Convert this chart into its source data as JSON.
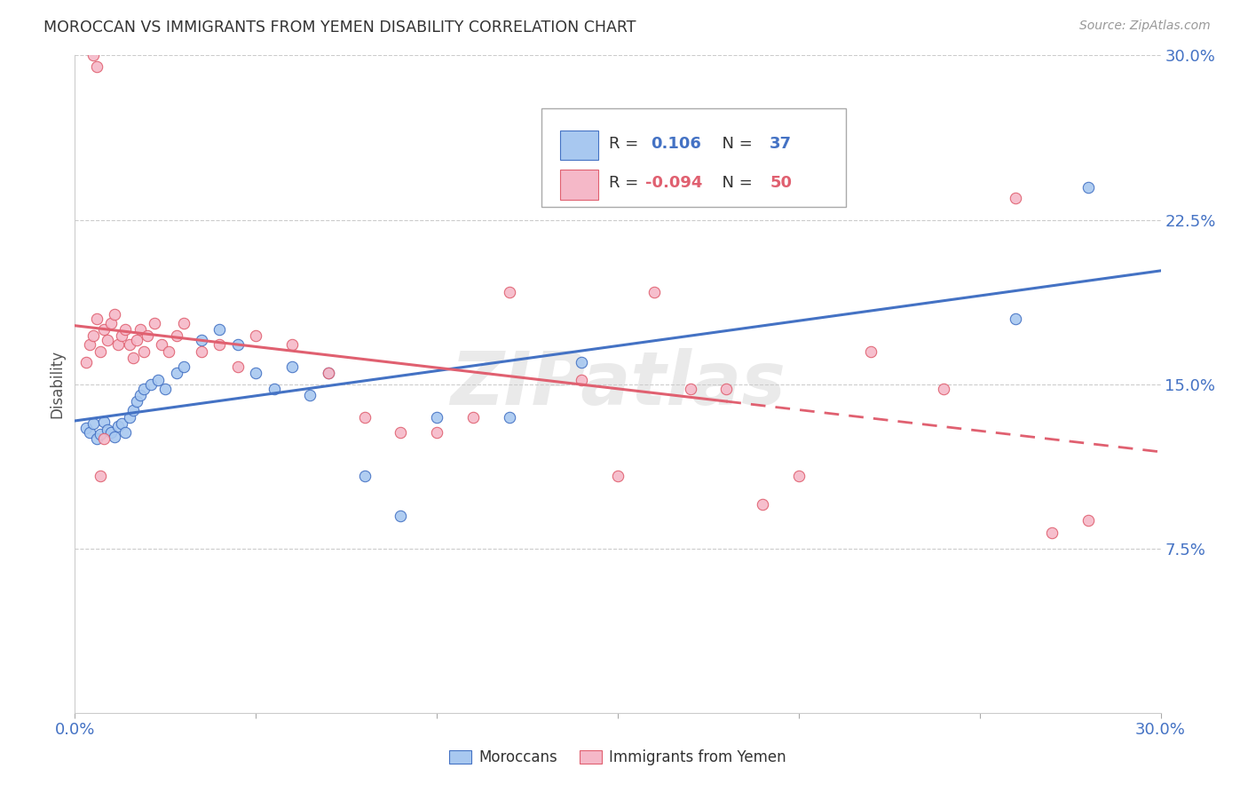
{
  "title": "MOROCCAN VS IMMIGRANTS FROM YEMEN DISABILITY CORRELATION CHART",
  "source": "Source: ZipAtlas.com",
  "ylabel": "Disability",
  "xlim": [
    0.0,
    0.3
  ],
  "ylim": [
    0.0,
    0.3
  ],
  "blue_color": "#A8C8F0",
  "pink_color": "#F5B8C8",
  "blue_line_color": "#4472C4",
  "pink_line_color": "#E06070",
  "grid_color": "#CCCCCC",
  "axis_label_color": "#4472C4",
  "title_color": "#333333",
  "watermark": "ZIPatlas",
  "legend_R_blue": "0.106",
  "legend_N_blue": "37",
  "legend_R_pink": "-0.094",
  "legend_N_pink": "50",
  "blue_scatter_x": [
    0.003,
    0.004,
    0.005,
    0.006,
    0.007,
    0.008,
    0.009,
    0.01,
    0.011,
    0.012,
    0.013,
    0.014,
    0.015,
    0.016,
    0.017,
    0.018,
    0.019,
    0.021,
    0.023,
    0.025,
    0.028,
    0.03,
    0.035,
    0.04,
    0.045,
    0.05,
    0.055,
    0.06,
    0.065,
    0.07,
    0.08,
    0.09,
    0.1,
    0.12,
    0.14,
    0.26,
    0.28
  ],
  "blue_scatter_y": [
    0.13,
    0.128,
    0.132,
    0.125,
    0.127,
    0.133,
    0.129,
    0.128,
    0.126,
    0.131,
    0.132,
    0.128,
    0.135,
    0.138,
    0.142,
    0.145,
    0.148,
    0.15,
    0.152,
    0.148,
    0.155,
    0.158,
    0.17,
    0.175,
    0.168,
    0.155,
    0.148,
    0.158,
    0.145,
    0.155,
    0.108,
    0.09,
    0.135,
    0.135,
    0.16,
    0.18,
    0.24
  ],
  "pink_scatter_x": [
    0.003,
    0.004,
    0.005,
    0.006,
    0.007,
    0.008,
    0.009,
    0.01,
    0.011,
    0.012,
    0.013,
    0.014,
    0.015,
    0.016,
    0.017,
    0.018,
    0.019,
    0.02,
    0.022,
    0.024,
    0.026,
    0.028,
    0.03,
    0.035,
    0.04,
    0.045,
    0.05,
    0.06,
    0.07,
    0.08,
    0.09,
    0.1,
    0.11,
    0.12,
    0.14,
    0.15,
    0.16,
    0.17,
    0.18,
    0.19,
    0.2,
    0.22,
    0.24,
    0.26,
    0.27,
    0.28,
    0.005,
    0.006,
    0.007,
    0.008
  ],
  "pink_scatter_y": [
    0.16,
    0.168,
    0.172,
    0.18,
    0.165,
    0.175,
    0.17,
    0.178,
    0.182,
    0.168,
    0.172,
    0.175,
    0.168,
    0.162,
    0.17,
    0.175,
    0.165,
    0.172,
    0.178,
    0.168,
    0.165,
    0.172,
    0.178,
    0.165,
    0.168,
    0.158,
    0.172,
    0.168,
    0.155,
    0.135,
    0.128,
    0.128,
    0.135,
    0.192,
    0.152,
    0.108,
    0.192,
    0.148,
    0.148,
    0.095,
    0.108,
    0.165,
    0.148,
    0.235,
    0.082,
    0.088,
    0.3,
    0.295,
    0.108,
    0.125
  ]
}
